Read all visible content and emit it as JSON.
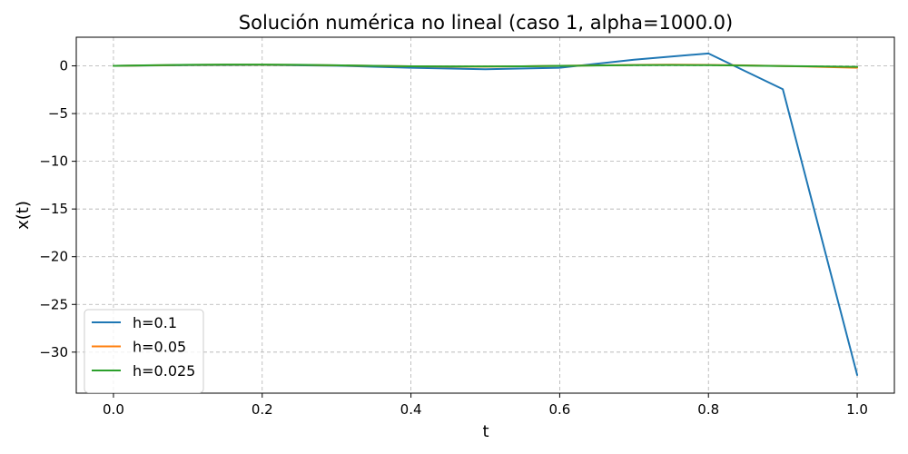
{
  "chart_data": {
    "type": "line",
    "title": "Solución numérica no lineal (caso 1, alpha=1000.0)",
    "xlabel": "t",
    "ylabel": "x(t)",
    "xlim": [
      -0.05,
      1.05
    ],
    "ylim": [
      -34.3,
      3.0
    ],
    "xticks": [
      0.0,
      0.2,
      0.4,
      0.6,
      0.8,
      1.0
    ],
    "xtick_labels": [
      "0.0",
      "0.2",
      "0.4",
      "0.6",
      "0.8",
      "1.0"
    ],
    "yticks": [
      0,
      -5,
      -10,
      -15,
      -20,
      -25,
      -30
    ],
    "ytick_labels": [
      "0",
      "−5",
      "−10",
      "−15",
      "−20",
      "−25",
      "−30"
    ],
    "grid": true,
    "legend_position": "lower-left",
    "series": [
      {
        "name": "h=0.1",
        "color": "#1f77b4",
        "x": [
          0.0,
          0.1,
          0.2,
          0.3,
          0.4,
          0.5,
          0.6,
          0.7,
          0.8,
          0.9,
          1.0
        ],
        "y": [
          0.0,
          0.08,
          0.1,
          0.02,
          -0.2,
          -0.35,
          -0.2,
          0.65,
          1.3,
          -2.45,
          -32.4
        ]
      },
      {
        "name": "h=0.05",
        "color": "#ff7f0e",
        "x": [
          0.0,
          0.05,
          0.1,
          0.15,
          0.2,
          0.25,
          0.3,
          0.35,
          0.4,
          0.45,
          0.5,
          0.55,
          0.6,
          0.65,
          0.7,
          0.75,
          0.8,
          0.85,
          0.9,
          0.95,
          1.0
        ],
        "y": [
          0.0,
          0.05,
          0.1,
          0.12,
          0.12,
          0.1,
          0.05,
          0.0,
          -0.05,
          -0.08,
          -0.08,
          -0.05,
          0.0,
          0.05,
          0.1,
          0.12,
          0.1,
          0.05,
          -0.02,
          -0.1,
          -0.2
        ]
      },
      {
        "name": "h=0.025",
        "color": "#2ca02c",
        "x": [
          0.0,
          0.05,
          0.1,
          0.15,
          0.2,
          0.25,
          0.3,
          0.35,
          0.4,
          0.45,
          0.5,
          0.55,
          0.6,
          0.65,
          0.7,
          0.75,
          0.8,
          0.85,
          0.9,
          0.95,
          1.0
        ],
        "y": [
          0.0,
          0.06,
          0.11,
          0.13,
          0.13,
          0.11,
          0.06,
          0.0,
          -0.04,
          -0.06,
          -0.06,
          -0.04,
          0.0,
          0.04,
          0.08,
          0.09,
          0.07,
          0.03,
          -0.02,
          -0.06,
          -0.1
        ]
      }
    ]
  }
}
